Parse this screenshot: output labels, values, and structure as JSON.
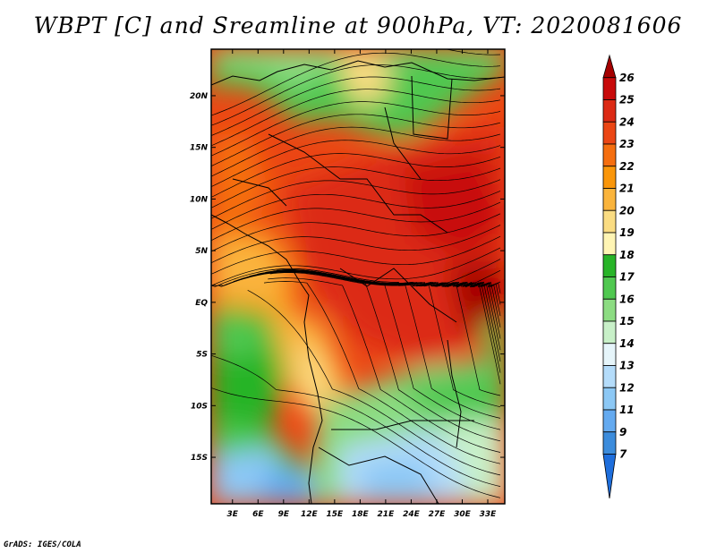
{
  "title": "WBPT [C] and Sreamline at 900hPa, VT: 2020081606",
  "credit": "GrADS: IGES/COLA",
  "map": {
    "lon_labels": [
      "3E",
      "6E",
      "9E",
      "12E",
      "15E",
      "18E",
      "21E",
      "24E",
      "27E",
      "30E",
      "33E"
    ],
    "lat_labels": [
      "20N",
      "15N",
      "10N",
      "5N",
      "EQ",
      "5S",
      "10S",
      "15S"
    ],
    "lon_ticks": [
      3,
      6,
      9,
      12,
      15,
      18,
      21,
      24,
      27,
      30,
      33
    ],
    "lat_ticks": [
      20,
      15,
      10,
      5,
      0,
      -5,
      -10,
      -15
    ],
    "lon_range": [
      0.5,
      35
    ],
    "lat_range": [
      -19.5,
      24.5
    ]
  },
  "colorbar": {
    "labels": [
      "26",
      "25",
      "24",
      "23",
      "22",
      "21",
      "20",
      "19",
      "18",
      "17",
      "16",
      "15",
      "14",
      "13",
      "12",
      "11",
      "9",
      "7"
    ],
    "colors": [
      "#a50000",
      "#c80a0a",
      "#dc2a14",
      "#eb4614",
      "#f56e0f",
      "#fa960a",
      "#fab43c",
      "#fadc82",
      "#fff5b4",
      "#28b428",
      "#50c850",
      "#8cdc82",
      "#c8f0c8",
      "#e6f5fa",
      "#b4dcfa",
      "#8cc8f5",
      "#64aaf0",
      "#3c8cdc",
      "#1e6edc"
    ]
  }
}
